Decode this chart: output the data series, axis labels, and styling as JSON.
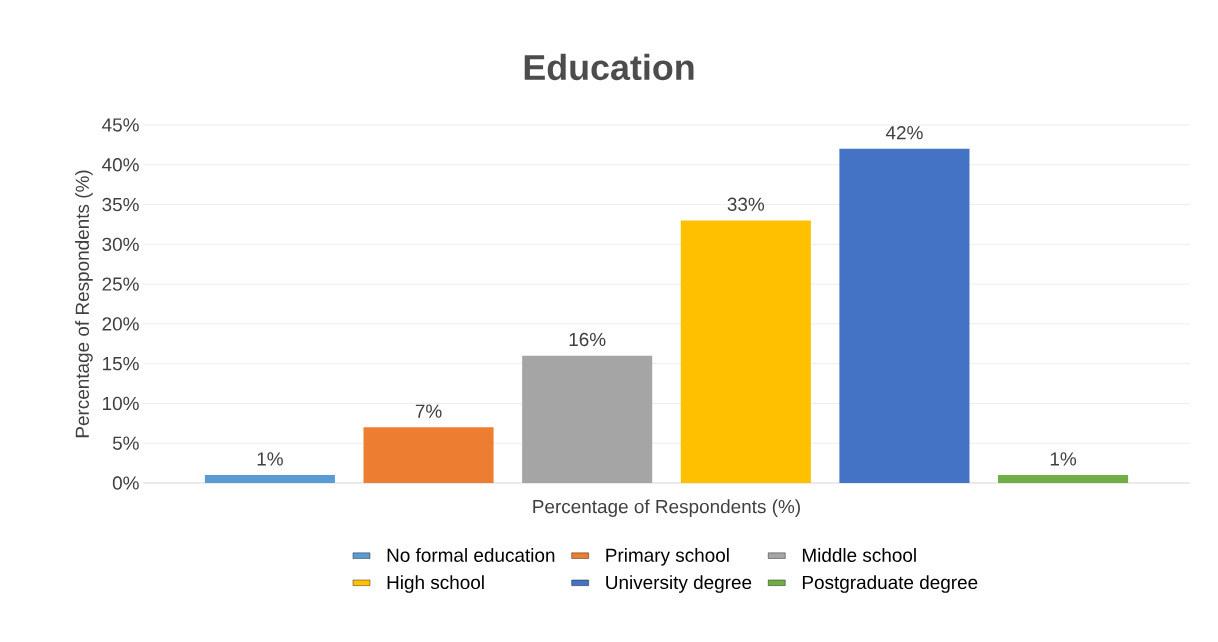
{
  "chart_data": {
    "type": "bar",
    "title": "Education",
    "xlabel": "Percentage of Respondents (%)",
    "ylabel": "Percentage of Respondents (%)",
    "categories": [
      null,
      null,
      null,
      null,
      null,
      null
    ],
    "series": [
      {
        "name": "No formal education",
        "color": "#5b9bd5",
        "values": [
          1,
          null,
          null,
          null,
          null,
          null
        ],
        "value_labels": [
          "1%",
          null,
          null,
          null,
          null,
          null
        ]
      },
      {
        "name": "Primary school",
        "color": "#ed7d31",
        "values": [
          null,
          7,
          null,
          null,
          null,
          null
        ],
        "value_labels": [
          null,
          "7%",
          null,
          null,
          null,
          null
        ]
      },
      {
        "name": "Middle school",
        "color": "#a5a5a5",
        "values": [
          null,
          null,
          16,
          null,
          null,
          null
        ],
        "value_labels": [
          null,
          null,
          "16%",
          null,
          null,
          null
        ]
      },
      {
        "name": "High school",
        "color": "#ffc000",
        "values": [
          null,
          null,
          null,
          33,
          null,
          null
        ],
        "value_labels": [
          null,
          null,
          null,
          "33%",
          null,
          null
        ]
      },
      {
        "name": "University degree",
        "color": "#4472c4",
        "values": [
          null,
          null,
          null,
          null,
          42,
          null
        ],
        "value_labels": [
          null,
          null,
          null,
          null,
          "42%",
          null
        ]
      },
      {
        "name": "Postgraduate degree",
        "color": "#70ad47",
        "values": [
          null,
          null,
          null,
          null,
          null,
          1
        ],
        "value_labels": [
          null,
          null,
          null,
          null,
          null,
          "1%"
        ]
      }
    ],
    "ylim": [
      0,
      45
    ],
    "yticks": [
      {
        "value": 0,
        "label": "0%"
      },
      {
        "value": 5,
        "label": "5%"
      },
      {
        "value": 10,
        "label": "10%"
      },
      {
        "value": 15,
        "label": "15%"
      },
      {
        "value": 20,
        "label": "20%"
      },
      {
        "value": 25,
        "label": "25%"
      },
      {
        "value": 30,
        "label": "30%"
      },
      {
        "value": 35,
        "label": "35%"
      },
      {
        "value": 40,
        "label": "40%"
      },
      {
        "value": 45,
        "label": "45%"
      }
    ],
    "grid": "y",
    "legend": "bottom"
  }
}
